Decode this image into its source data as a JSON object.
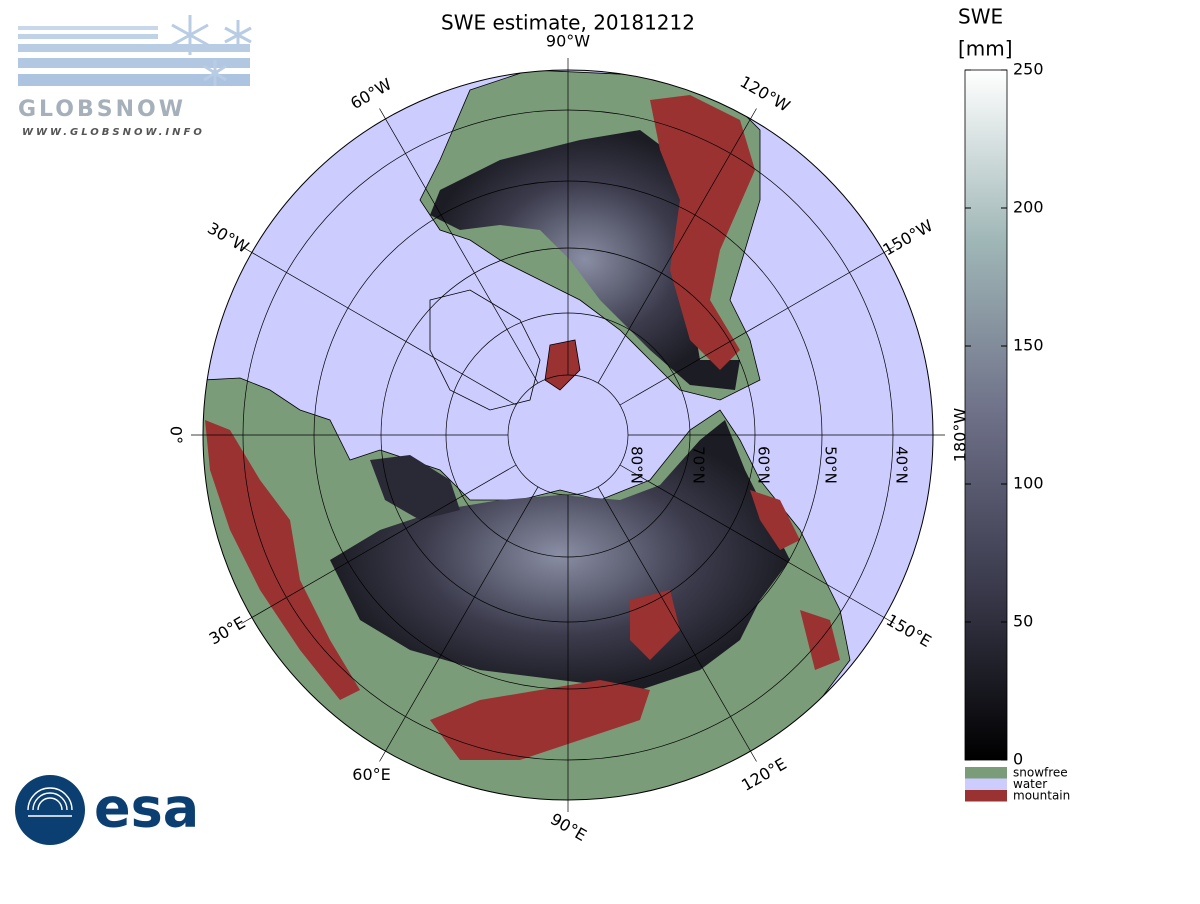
{
  "title": "SWE estimate, 20181212",
  "map": {
    "longitude_labels": [
      "0°",
      "30°E",
      "60°E",
      "90°E",
      "120°E",
      "150°E",
      "180°W",
      "150°W",
      "120°W",
      "90°W",
      "60°W",
      "30°W"
    ],
    "latitude_labels": [
      "80°N",
      "70°N",
      "60°N",
      "50°N",
      "40°N"
    ]
  },
  "colorbar": {
    "title": "SWE",
    "unit": "[mm]",
    "lim": [
      0,
      250
    ],
    "ticks": [
      0,
      50,
      100,
      150,
      200,
      250
    ]
  },
  "legend": [
    {
      "label": "snowfree",
      "color": "#7b9c79"
    },
    {
      "label": "water",
      "color": "#ccccff"
    },
    {
      "label": "mountain",
      "color": "#9b3232"
    }
  ],
  "logos": {
    "globsnow": "GLOBSNOW",
    "globsnow_url": "WWW.GLOBSNOW.INFO",
    "esa": "esa"
  }
}
